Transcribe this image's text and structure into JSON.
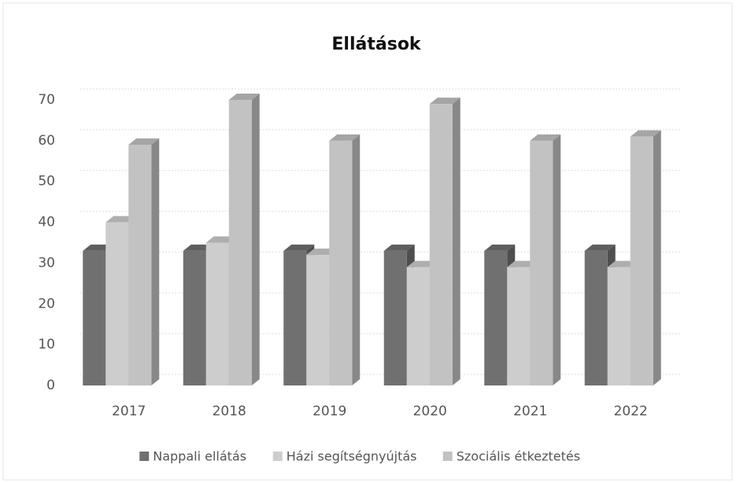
{
  "chart_data": {
    "type": "bar3d",
    "title": "Ellátások",
    "categories": [
      "2017",
      "2018",
      "2019",
      "2020",
      "2021",
      "2022"
    ],
    "series": [
      {
        "name": "Nappali ellátás",
        "color": "#707070",
        "values": [
          33,
          33,
          33,
          33,
          33,
          33
        ]
      },
      {
        "name": "Házi segítségnyújtás",
        "color": "#cdcdcd",
        "values": [
          40,
          35,
          32,
          29,
          29,
          29
        ]
      },
      {
        "name": "Szociális étkeztetés",
        "color": "#c2c2c2",
        "values": [
          59,
          70,
          60,
          69,
          60,
          61
        ]
      }
    ],
    "ylim": [
      0,
      70
    ],
    "yticks": [
      0,
      10,
      20,
      30,
      40,
      50,
      60,
      70
    ],
    "grid": true,
    "legend": "bottom"
  }
}
